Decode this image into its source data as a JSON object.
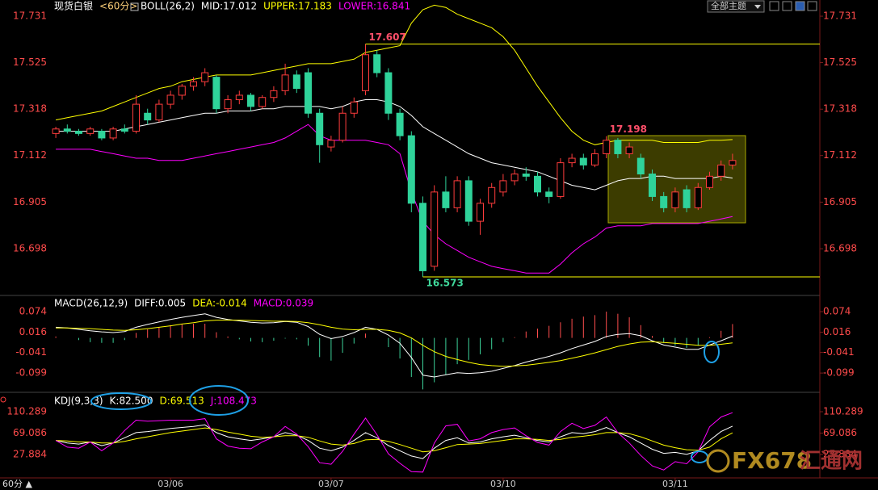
{
  "header": {
    "theme_button": "全部主题",
    "period_button": "60分 ▲",
    "watermark": "FX678",
    "watermark_cn": "汇通网"
  },
  "chart_data": [
    {
      "type": "candlestick",
      "title": "现货白银",
      "period": "<60分>",
      "indicator": "BOLL(26,2)",
      "up_color": "#ff3c3c",
      "down_color": "#2fd39a",
      "candles": [
        [
          17.21,
          17.24,
          17.19,
          17.23
        ],
        [
          17.23,
          17.25,
          17.21,
          17.22
        ],
        [
          17.22,
          17.23,
          17.2,
          17.21
        ],
        [
          17.21,
          17.24,
          17.2,
          17.23
        ],
        [
          17.22,
          17.23,
          17.18,
          17.19
        ],
        [
          17.19,
          17.24,
          17.18,
          17.23
        ],
        [
          17.23,
          17.25,
          17.21,
          17.22
        ],
        [
          17.22,
          17.38,
          17.21,
          17.34
        ],
        [
          17.3,
          17.32,
          17.25,
          17.27
        ],
        [
          17.27,
          17.36,
          17.26,
          17.34
        ],
        [
          17.34,
          17.4,
          17.32,
          17.38
        ],
        [
          17.38,
          17.43,
          17.36,
          17.42
        ],
        [
          17.42,
          17.46,
          17.4,
          17.44
        ],
        [
          17.44,
          17.5,
          17.42,
          17.48
        ],
        [
          17.46,
          17.47,
          17.3,
          17.32
        ],
        [
          17.32,
          17.38,
          17.3,
          17.36
        ],
        [
          17.36,
          17.4,
          17.34,
          17.38
        ],
        [
          17.38,
          17.39,
          17.31,
          17.33
        ],
        [
          17.33,
          17.38,
          17.32,
          17.37
        ],
        [
          17.37,
          17.42,
          17.35,
          17.4
        ],
        [
          17.4,
          17.52,
          17.38,
          17.47
        ],
        [
          17.47,
          17.49,
          17.39,
          17.41
        ],
        [
          17.48,
          17.5,
          17.28,
          17.3
        ],
        [
          17.3,
          17.32,
          17.08,
          17.16
        ],
        [
          17.15,
          17.2,
          17.13,
          17.18
        ],
        [
          17.18,
          17.33,
          17.17,
          17.3
        ],
        [
          17.3,
          17.37,
          17.28,
          17.35
        ],
        [
          17.4,
          17.607,
          17.38,
          17.56
        ],
        [
          17.56,
          17.58,
          17.46,
          17.48
        ],
        [
          17.48,
          17.5,
          17.27,
          17.3
        ],
        [
          17.3,
          17.32,
          17.18,
          17.2
        ],
        [
          17.2,
          17.22,
          16.86,
          16.9
        ],
        [
          16.9,
          16.93,
          16.573,
          16.6
        ],
        [
          16.62,
          16.98,
          16.6,
          16.95
        ],
        [
          16.95,
          17.02,
          16.86,
          16.88
        ],
        [
          16.88,
          17.02,
          16.86,
          17.0
        ],
        [
          17.0,
          17.02,
          16.8,
          16.82
        ],
        [
          16.82,
          16.92,
          16.76,
          16.9
        ],
        [
          16.9,
          16.99,
          16.88,
          16.97
        ],
        [
          16.95,
          17.03,
          16.93,
          17.0
        ],
        [
          17.0,
          17.05,
          16.98,
          17.03
        ],
        [
          17.03,
          17.06,
          17.0,
          17.02
        ],
        [
          17.02,
          17.04,
          16.93,
          16.95
        ],
        [
          16.95,
          16.97,
          16.9,
          16.93
        ],
        [
          16.93,
          17.1,
          16.92,
          17.08
        ],
        [
          17.08,
          17.12,
          17.06,
          17.1
        ],
        [
          17.1,
          17.12,
          17.05,
          17.07
        ],
        [
          17.07,
          17.14,
          17.06,
          17.12
        ],
        [
          17.12,
          17.198,
          17.1,
          17.18
        ],
        [
          17.18,
          17.19,
          17.1,
          17.12
        ],
        [
          17.12,
          17.17,
          17.1,
          17.15
        ],
        [
          17.1,
          17.12,
          17.01,
          17.03
        ],
        [
          17.03,
          17.05,
          16.91,
          16.93
        ],
        [
          16.93,
          16.95,
          16.86,
          16.88
        ],
        [
          16.88,
          16.97,
          16.86,
          16.95
        ],
        [
          16.96,
          16.98,
          16.86,
          16.88
        ],
        [
          16.88,
          16.99,
          16.87,
          16.97
        ],
        [
          16.97,
          17.04,
          16.96,
          17.02
        ],
        [
          17.02,
          17.09,
          17.0,
          17.07
        ],
        [
          17.07,
          17.12,
          17.05,
          17.09
        ]
      ],
      "series": [
        {
          "name": "MID:17.012",
          "color": "#ffffff",
          "values": [
            17.22,
            17.22,
            17.22,
            17.22,
            17.22,
            17.22,
            17.23,
            17.24,
            17.25,
            17.26,
            17.27,
            17.28,
            17.29,
            17.3,
            17.3,
            17.31,
            17.31,
            17.31,
            17.32,
            17.32,
            17.33,
            17.33,
            17.33,
            17.33,
            17.32,
            17.33,
            17.35,
            17.36,
            17.36,
            17.35,
            17.33,
            17.29,
            17.24,
            17.21,
            17.18,
            17.15,
            17.12,
            17.1,
            17.08,
            17.07,
            17.06,
            17.05,
            17.04,
            17.02,
            17.0,
            16.98,
            16.97,
            16.96,
            16.98,
            17.0,
            17.01,
            17.01,
            17.02,
            17.02,
            17.01,
            17.01,
            17.01,
            17.01,
            17.02,
            17.012
          ]
        },
        {
          "name": "UPPER:17.183",
          "color": "#ffff00",
          "values": [
            17.27,
            17.28,
            17.29,
            17.3,
            17.31,
            17.33,
            17.35,
            17.37,
            17.39,
            17.41,
            17.42,
            17.44,
            17.45,
            17.46,
            17.47,
            17.47,
            17.47,
            17.47,
            17.48,
            17.49,
            17.5,
            17.51,
            17.52,
            17.52,
            17.52,
            17.53,
            17.54,
            17.57,
            17.58,
            17.59,
            17.6,
            17.7,
            17.76,
            17.78,
            17.77,
            17.74,
            17.72,
            17.7,
            17.68,
            17.64,
            17.58,
            17.5,
            17.42,
            17.35,
            17.28,
            17.22,
            17.18,
            17.16,
            17.17,
            17.18,
            17.18,
            17.18,
            17.18,
            17.17,
            17.17,
            17.17,
            17.17,
            17.18,
            17.18,
            17.183
          ]
        },
        {
          "name": "LOWER:16.841",
          "color": "#ff00ff",
          "values": [
            17.14,
            17.14,
            17.14,
            17.14,
            17.13,
            17.12,
            17.11,
            17.1,
            17.1,
            17.09,
            17.09,
            17.09,
            17.1,
            17.11,
            17.12,
            17.13,
            17.14,
            17.15,
            17.16,
            17.17,
            17.19,
            17.22,
            17.25,
            17.2,
            17.18,
            17.18,
            17.18,
            17.18,
            17.17,
            17.16,
            17.12,
            16.95,
            16.82,
            16.76,
            16.72,
            16.69,
            16.66,
            16.64,
            16.62,
            16.61,
            16.6,
            16.59,
            16.59,
            16.59,
            16.63,
            16.68,
            16.72,
            16.75,
            16.79,
            16.8,
            16.8,
            16.8,
            16.81,
            16.81,
            16.81,
            16.81,
            16.81,
            16.82,
            16.83,
            16.841
          ]
        }
      ],
      "annotations": [
        {
          "value": 17.607,
          "color": "#ff4f6a",
          "line": true
        },
        {
          "value": 16.573,
          "color": "#3fd79a",
          "line": true
        },
        {
          "value": 17.198,
          "color": "#ff4f6a",
          "line": false
        }
      ],
      "line_color": "#ffff00",
      "ylim": [
        16.494,
        17.803
      ],
      "yticks": [
        17.731,
        17.525,
        17.318,
        17.112,
        16.905,
        16.698
      ],
      "tick_color": "#ff4b4b"
    },
    {
      "type": "macd",
      "title": "MACD(26,12,9)",
      "series": [
        {
          "name": "DIFF:0.005",
          "color": "#ffffff",
          "values": [
            0.03,
            0.028,
            0.024,
            0.02,
            0.017,
            0.015,
            0.018,
            0.03,
            0.038,
            0.045,
            0.052,
            0.058,
            0.063,
            0.068,
            0.058,
            0.052,
            0.048,
            0.044,
            0.042,
            0.043,
            0.046,
            0.044,
            0.032,
            0.01,
            -0.002,
            0.004,
            0.015,
            0.03,
            0.024,
            0.008,
            -0.015,
            -0.055,
            -0.105,
            -0.11,
            -0.104,
            -0.098,
            -0.1,
            -0.098,
            -0.094,
            -0.086,
            -0.078,
            -0.068,
            -0.06,
            -0.052,
            -0.042,
            -0.03,
            -0.02,
            -0.01,
            0.004,
            0.01,
            0.012,
            0.006,
            -0.008,
            -0.02,
            -0.026,
            -0.032,
            -0.032,
            -0.02,
            -0.008,
            0.005
          ]
        },
        {
          "name": "DEA:-0.014",
          "color": "#ffff00",
          "values": [
            0.028,
            0.028,
            0.027,
            0.026,
            0.024,
            0.022,
            0.021,
            0.023,
            0.026,
            0.03,
            0.034,
            0.039,
            0.043,
            0.048,
            0.05,
            0.05,
            0.05,
            0.049,
            0.048,
            0.047,
            0.047,
            0.046,
            0.043,
            0.037,
            0.03,
            0.025,
            0.023,
            0.024,
            0.024,
            0.021,
            0.014,
            0.0,
            -0.021,
            -0.039,
            -0.052,
            -0.061,
            -0.069,
            -0.075,
            -0.078,
            -0.08,
            -0.079,
            -0.077,
            -0.073,
            -0.069,
            -0.064,
            -0.057,
            -0.05,
            -0.042,
            -0.033,
            -0.024,
            -0.017,
            -0.012,
            -0.011,
            -0.013,
            -0.015,
            -0.018,
            -0.021,
            -0.021,
            -0.018,
            -0.014
          ]
        },
        {
          "name": "MACD:0.039",
          "color": "#ff00ff",
          "bar_colors": [
            "#ff4d4d",
            "#3cd39a"
          ],
          "values": [
            0.004,
            0.0,
            -0.006,
            -0.012,
            -0.014,
            -0.014,
            -0.006,
            0.014,
            0.024,
            0.03,
            0.036,
            0.038,
            0.04,
            0.04,
            0.016,
            0.004,
            -0.004,
            -0.01,
            -0.012,
            -0.008,
            -0.002,
            -0.004,
            -0.022,
            -0.054,
            -0.064,
            -0.042,
            -0.016,
            0.012,
            0.0,
            -0.026,
            -0.058,
            -0.11,
            -0.145,
            -0.125,
            -0.104,
            -0.074,
            -0.062,
            -0.046,
            -0.032,
            -0.012,
            0.002,
            0.018,
            0.026,
            0.034,
            0.044,
            0.054,
            0.06,
            0.064,
            0.074,
            0.068,
            0.058,
            0.036,
            0.006,
            -0.014,
            -0.022,
            -0.028,
            -0.022,
            0.002,
            0.02,
            0.039
          ]
        }
      ],
      "ylim": [
        -0.151,
        0.115
      ],
      "yticks": [
        0.074,
        0.016,
        -0.041,
        -0.099
      ],
      "tick_color": "#ff4b4b"
    },
    {
      "type": "line",
      "title": "KDJ(9,3,3)",
      "categories": [
        null,
        null,
        null,
        null,
        null,
        null,
        null,
        null,
        null,
        null,
        "03/06",
        null,
        null,
        null,
        null,
        null,
        null,
        null,
        null,
        null,
        null,
        null,
        null,
        null,
        "03/07",
        null,
        null,
        null,
        null,
        null,
        null,
        null,
        null,
        null,
        null,
        null,
        null,
        null,
        null,
        "03/10",
        null,
        null,
        null,
        null,
        null,
        null,
        null,
        null,
        null,
        null,
        null,
        null,
        null,
        null,
        "03/11",
        null,
        null,
        null,
        null,
        null
      ],
      "series": [
        {
          "name": "K:82.500",
          "color": "#ffffff",
          "values": [
            55,
            50,
            48,
            52,
            45,
            50,
            60,
            70,
            72,
            75,
            78,
            80,
            82,
            85,
            70,
            62,
            58,
            55,
            58,
            62,
            70,
            65,
            55,
            40,
            35,
            42,
            55,
            70,
            60,
            45,
            35,
            25,
            20,
            40,
            55,
            60,
            50,
            52,
            58,
            62,
            65,
            60,
            55,
            52,
            62,
            70,
            68,
            72,
            80,
            70,
            62,
            50,
            38,
            30,
            32,
            28,
            35,
            55,
            72,
            82.5
          ]
        },
        {
          "name": "D:69.513",
          "color": "#ffff00",
          "values": [
            55,
            54,
            52,
            52,
            50,
            50,
            53,
            58,
            62,
            66,
            70,
            73,
            76,
            79,
            76,
            71,
            67,
            63,
            61,
            62,
            64,
            64,
            61,
            54,
            48,
            46,
            49,
            56,
            57,
            53,
            47,
            40,
            33,
            35,
            41,
            47,
            48,
            49,
            52,
            55,
            58,
            58,
            57,
            55,
            57,
            61,
            63,
            66,
            70,
            70,
            68,
            62,
            54,
            46,
            41,
            37,
            36,
            42,
            58,
            69.513
          ]
        },
        {
          "name": "J:108.473",
          "color": "#ff00ff",
          "values": [
            55,
            42,
            40,
            52,
            35,
            50,
            74,
            94,
            92,
            93,
            94,
            94,
            94,
            97,
            58,
            44,
            40,
            39,
            52,
            62,
            82,
            67,
            43,
            12,
            9,
            34,
            67,
            98,
            66,
            29,
            11,
            -5,
            -6,
            50,
            83,
            86,
            54,
            58,
            70,
            76,
            79,
            64,
            51,
            46,
            72,
            88,
            78,
            84,
            100,
            70,
            50,
            26,
            6,
            -2,
            14,
            10,
            33,
            81,
            100,
            108.473
          ]
        }
      ],
      "ylim": [
        -17.2,
        144.5
      ],
      "yticks": [
        110.289,
        69.086,
        27.884
      ],
      "tick_color": "#ff4b4b"
    }
  ]
}
